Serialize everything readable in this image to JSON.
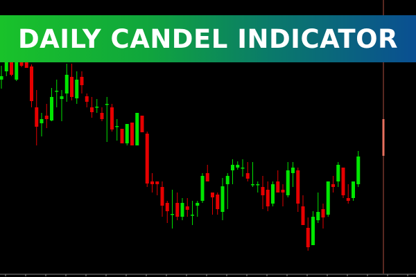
{
  "banner": {
    "title": "DAILY CANDEL INDICATOR"
  },
  "colors": {
    "bull": "#00e600",
    "bear": "#e60000",
    "daily_marker": "#e8705e",
    "banner_start": "#19c22a",
    "banner_end": "#0a4f92"
  },
  "chart_data": {
    "type": "candlestick",
    "title": "",
    "xlabel": "",
    "ylabel": "",
    "ylim": [
      0,
      400
    ],
    "grid": false,
    "candles": [
      [
        285,
        305,
        272,
        290
      ],
      [
        297,
        317,
        290,
        315
      ],
      [
        312,
        315,
        290,
        292
      ],
      [
        285,
        328,
        283,
        328
      ],
      [
        320,
        320,
        303,
        305
      ],
      [
        317,
        317,
        302,
        302
      ],
      [
        304,
        307,
        245,
        254
      ],
      [
        245,
        270,
        190,
        217
      ],
      [
        222,
        237,
        203,
        228
      ],
      [
        233,
        250,
        215,
        228
      ],
      [
        226,
        273,
        225,
        260
      ],
      [
        268,
        285,
        245,
        269
      ],
      [
        257,
        270,
        225,
        261
      ],
      [
        265,
        308,
        253,
        292
      ],
      [
        289,
        308,
        255,
        260
      ],
      [
        258,
        297,
        250,
        285
      ],
      [
        289,
        297,
        265,
        277
      ],
      [
        261,
        265,
        245,
        253
      ],
      [
        245,
        260,
        230,
        238
      ],
      [
        246,
        257,
        237,
        246
      ],
      [
        237,
        245,
        225,
        228
      ],
      [
        250,
        260,
        195,
        250
      ],
      [
        245,
        250,
        210,
        213
      ],
      [
        218,
        228,
        197,
        218
      ],
      [
        214,
        214,
        193,
        193
      ],
      [
        193,
        221,
        190,
        221
      ],
      [
        223,
        223,
        190,
        190
      ],
      [
        190,
        237,
        190,
        237
      ],
      [
        233,
        233,
        209,
        209
      ],
      [
        207,
        210,
        130,
        135
      ],
      [
        138,
        150,
        122,
        134
      ],
      [
        138,
        138,
        118,
        134
      ],
      [
        130,
        138,
        87,
        103
      ],
      [
        107,
        110,
        78,
        95
      ],
      [
        91,
        126,
        70,
        91
      ],
      [
        107,
        122,
        82,
        87
      ],
      [
        87,
        114,
        82,
        107
      ],
      [
        102,
        114,
        87,
        97
      ],
      [
        90,
        110,
        75,
        90
      ],
      [
        103,
        110,
        87,
        107
      ],
      [
        110,
        150,
        107,
        146
      ],
      [
        150,
        162,
        138,
        138
      ],
      [
        122,
        122,
        90,
        115
      ],
      [
        119,
        122,
        90,
        98
      ],
      [
        94,
        143,
        82,
        131
      ],
      [
        134,
        150,
        98,
        146
      ],
      [
        154,
        170,
        134,
        162
      ],
      [
        158,
        167,
        155,
        162
      ],
      [
        158,
        170,
        145,
        158
      ],
      [
        150,
        166,
        138,
        142
      ],
      [
        134,
        166,
        130,
        134
      ],
      [
        134,
        138,
        122,
        134
      ],
      [
        130,
        146,
        98,
        118
      ],
      [
        126,
        138,
        95,
        102
      ],
      [
        106,
        138,
        102,
        134
      ],
      [
        138,
        154,
        122,
        122
      ],
      [
        126,
        134,
        102,
        122
      ],
      [
        118,
        166,
        115,
        154
      ],
      [
        150,
        166,
        130,
        158
      ],
      [
        154,
        158,
        94,
        106
      ],
      [
        102,
        118,
        75,
        75
      ],
      [
        71,
        86,
        38,
        43
      ],
      [
        46,
        95,
        46,
        87
      ],
      [
        82,
        122,
        78,
        94
      ],
      [
        98,
        106,
        70,
        86
      ],
      [
        90,
        138,
        87,
        138
      ],
      [
        134,
        146,
        122,
        130
      ],
      [
        138,
        166,
        130,
        162
      ],
      [
        158,
        158,
        114,
        118
      ],
      [
        114,
        134,
        106,
        110
      ],
      [
        114,
        138,
        110,
        138
      ],
      [
        134,
        182,
        130,
        174
      ]
    ],
    "daily_marker": {
      "open": 228,
      "high": 400,
      "low": 5,
      "close": 175
    }
  }
}
